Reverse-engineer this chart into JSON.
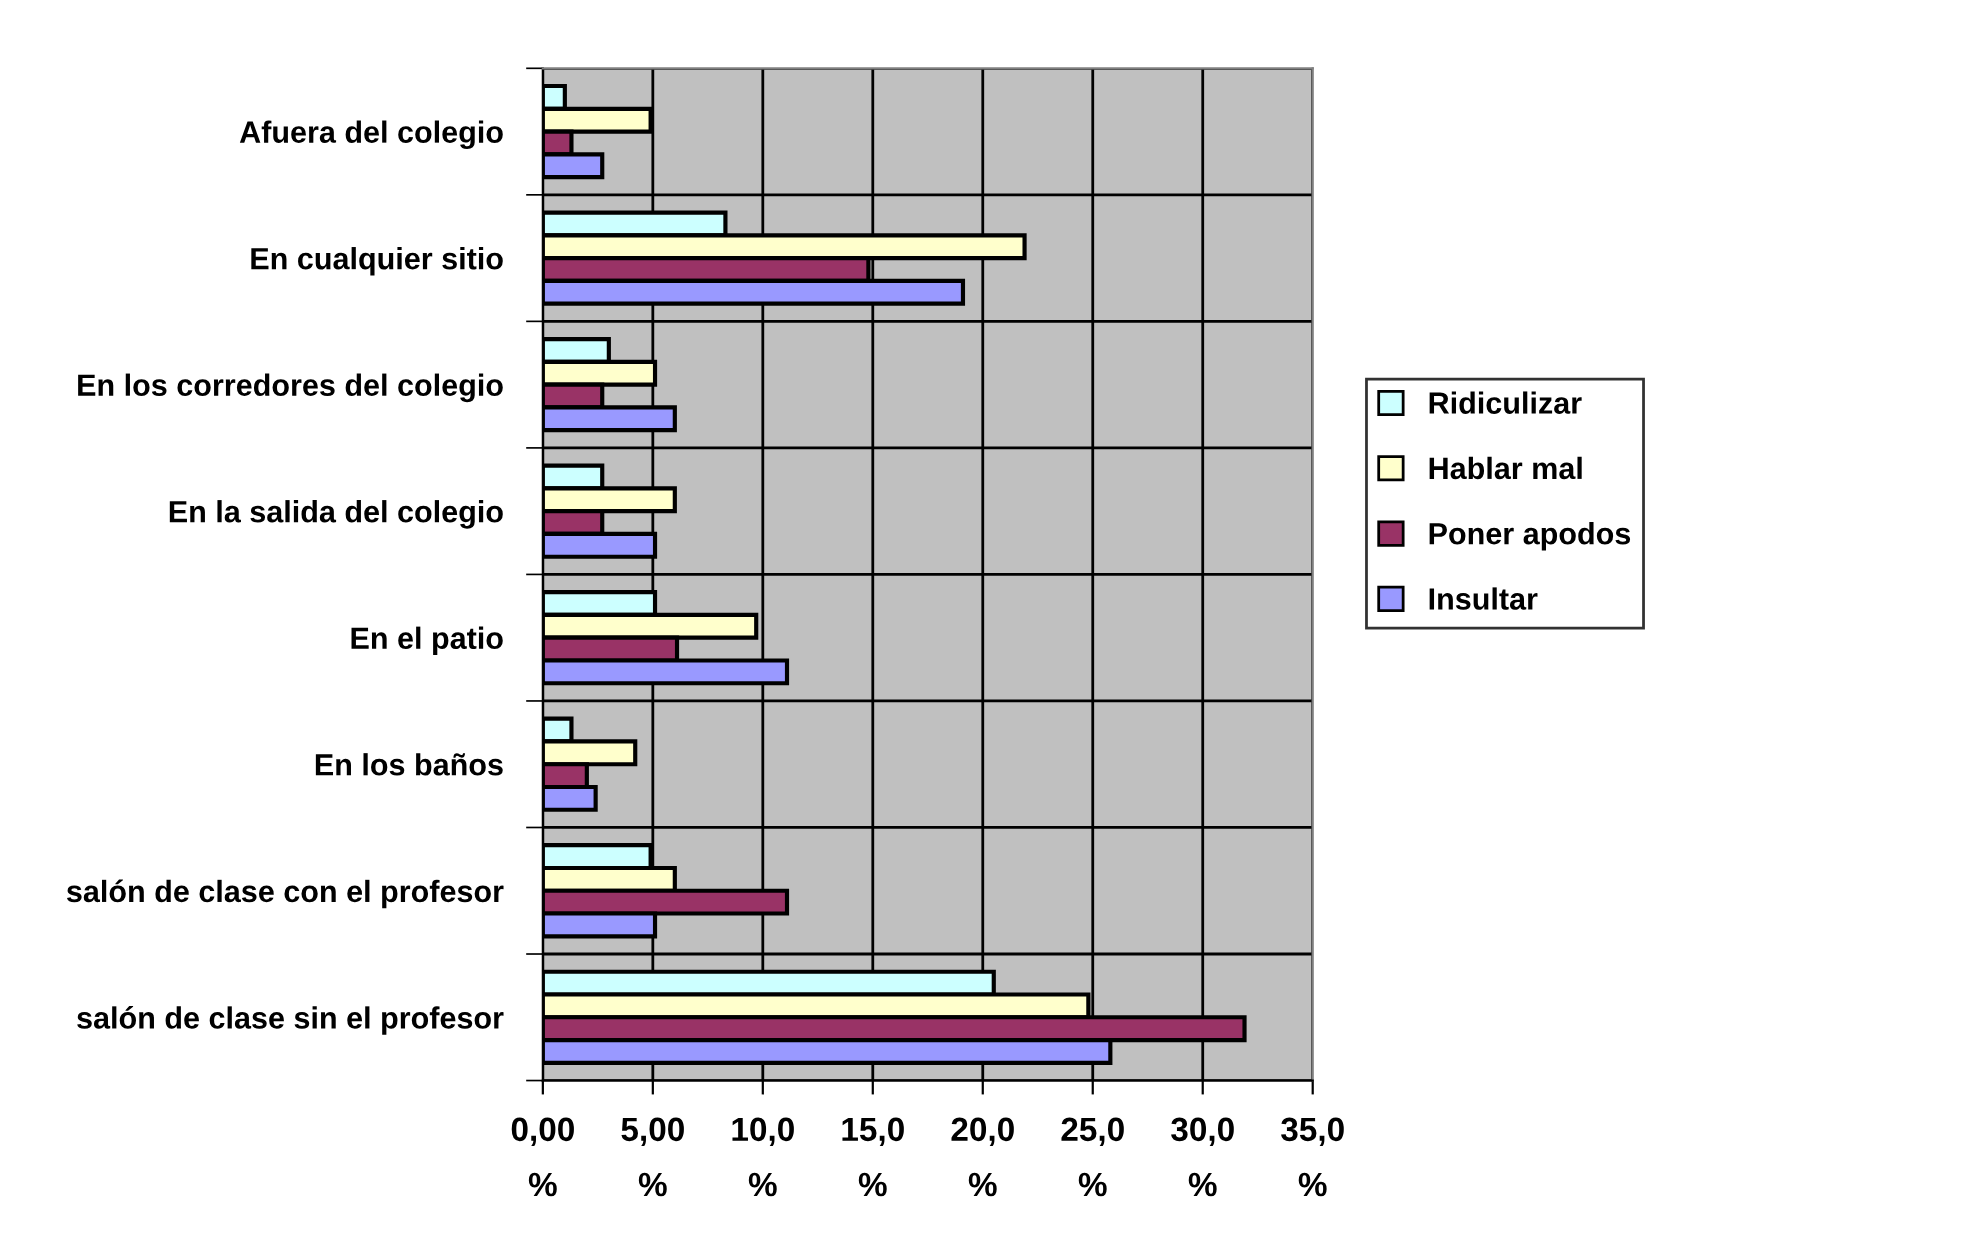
{
  "chart_data": {
    "type": "bar",
    "orientation": "horizontal",
    "categories": [
      "Afuera del colegio",
      "En cualquier sitio",
      "En los corredores del colegio",
      "En la salida del colegio",
      "En el patio",
      "En los baños",
      "salón de clase con el profesor",
      "salón de clase sin el profesor"
    ],
    "series": [
      {
        "name": "Ridiculizar",
        "color": "#ccffff",
        "values": [
          1.0,
          8.3,
          3.0,
          2.7,
          5.1,
          1.3,
          4.9,
          20.5
        ]
      },
      {
        "name": "Hablar mal",
        "color": "#ffffcc",
        "values": [
          4.9,
          21.9,
          5.1,
          6.0,
          9.7,
          4.2,
          6.0,
          24.8
        ]
      },
      {
        "name": "Poner apodos",
        "color": "#993366",
        "values": [
          1.3,
          14.8,
          2.7,
          2.7,
          6.1,
          2.0,
          11.1,
          31.9
        ]
      },
      {
        "name": "Insultar",
        "color": "#9999ff",
        "values": [
          2.7,
          19.1,
          6.0,
          5.1,
          11.1,
          2.4,
          5.1,
          25.8
        ]
      }
    ],
    "xlim": [
      0,
      35
    ],
    "xticks": [
      {
        "value": 0,
        "label": "0,00\n%"
      },
      {
        "value": 5,
        "label": "5,00\n%"
      },
      {
        "value": 10,
        "label": "10,0\n%"
      },
      {
        "value": 15,
        "label": "15,0\n%"
      },
      {
        "value": 20,
        "label": "20,0\n%"
      },
      {
        "value": 25,
        "label": "25,0\n%"
      },
      {
        "value": 30,
        "label": "30,0\n%"
      },
      {
        "value": 35,
        "label": "35,0\n%"
      }
    ],
    "grid": true,
    "legend": "right"
  }
}
